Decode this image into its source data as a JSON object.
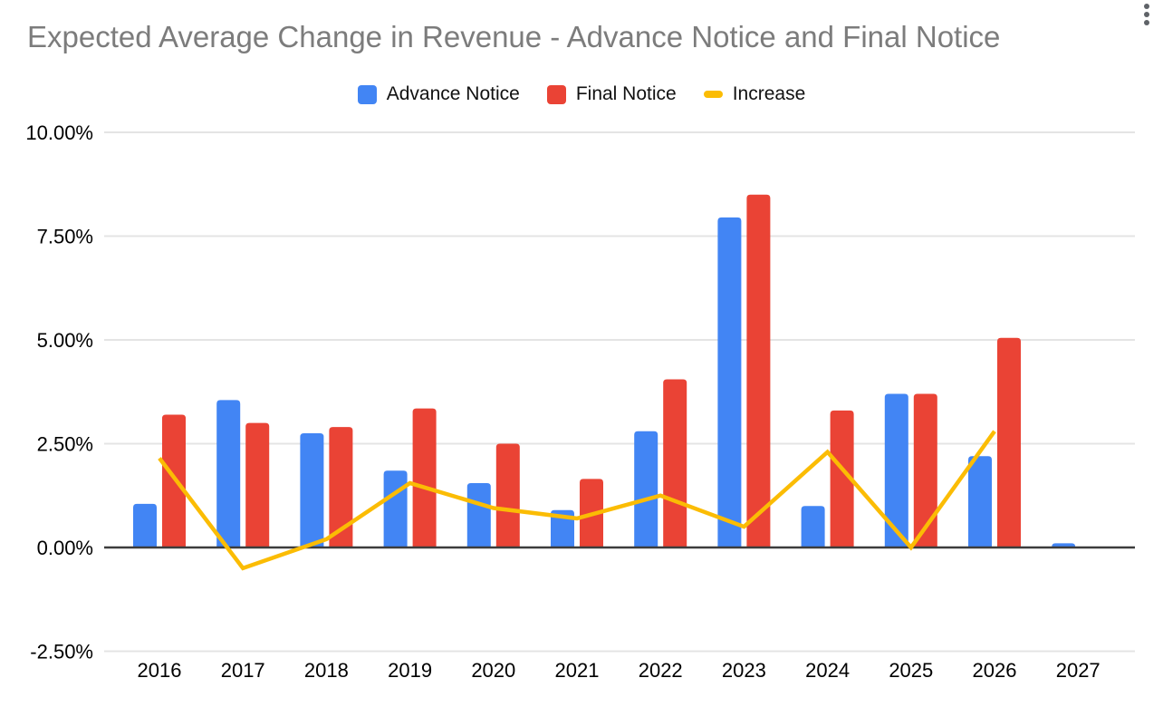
{
  "header": {
    "menu_icon": "kebab-menu-icon"
  },
  "legend": [
    {
      "label": "Advance Notice",
      "color": "#4285F4",
      "shape": "square"
    },
    {
      "label": "Final Notice",
      "color": "#EA4335",
      "shape": "square"
    },
    {
      "label": "Increase",
      "color": "#FBBC04",
      "shape": "dash"
    }
  ],
  "colors": {
    "advance_notice": "#4285F4",
    "final_notice": "#EA4335",
    "increase": "#FBBC04",
    "title_text": "#7C7C7C",
    "axis_text": "#000000",
    "gridline": "#E4E4E4",
    "zero_line": "#3C3C3C",
    "menu_icon": "#5F6368"
  },
  "chart_data": {
    "type": "combo",
    "title": "Expected Average Change in Revenue - Advance Notice and Final Notice",
    "xlabel": "",
    "ylabel": "",
    "categories": [
      "2016",
      "2017",
      "2018",
      "2019",
      "2020",
      "2021",
      "2022",
      "2023",
      "2024",
      "2025",
      "2026",
      "2027"
    ],
    "series": [
      {
        "name": "Advance Notice",
        "type": "bar",
        "color": "#4285F4",
        "values": [
          1.05,
          3.55,
          2.75,
          1.85,
          1.55,
          0.9,
          2.8,
          7.95,
          1.0,
          3.7,
          2.2,
          0.1
        ]
      },
      {
        "name": "Final Notice",
        "type": "bar",
        "color": "#EA4335",
        "values": [
          3.2,
          3.0,
          2.9,
          3.35,
          2.5,
          1.65,
          4.05,
          8.5,
          3.3,
          3.7,
          5.05,
          null
        ]
      },
      {
        "name": "Increase",
        "type": "line",
        "color": "#FBBC04",
        "values": [
          2.15,
          -0.5,
          0.2,
          1.55,
          0.95,
          0.7,
          1.25,
          0.5,
          2.3,
          0.0,
          2.8,
          null
        ]
      }
    ],
    "ylim": [
      -2.5,
      10
    ],
    "yticks": [
      {
        "value": 10,
        "label": "10.00%"
      },
      {
        "value": 7.5,
        "label": "7.50%"
      },
      {
        "value": 5,
        "label": "5.00%"
      },
      {
        "value": 2.5,
        "label": "2.50%"
      },
      {
        "value": 0,
        "label": "0.00%"
      },
      {
        "value": -2.5,
        "label": "-2.50%"
      }
    ],
    "grid": true,
    "legend_position": "top"
  }
}
